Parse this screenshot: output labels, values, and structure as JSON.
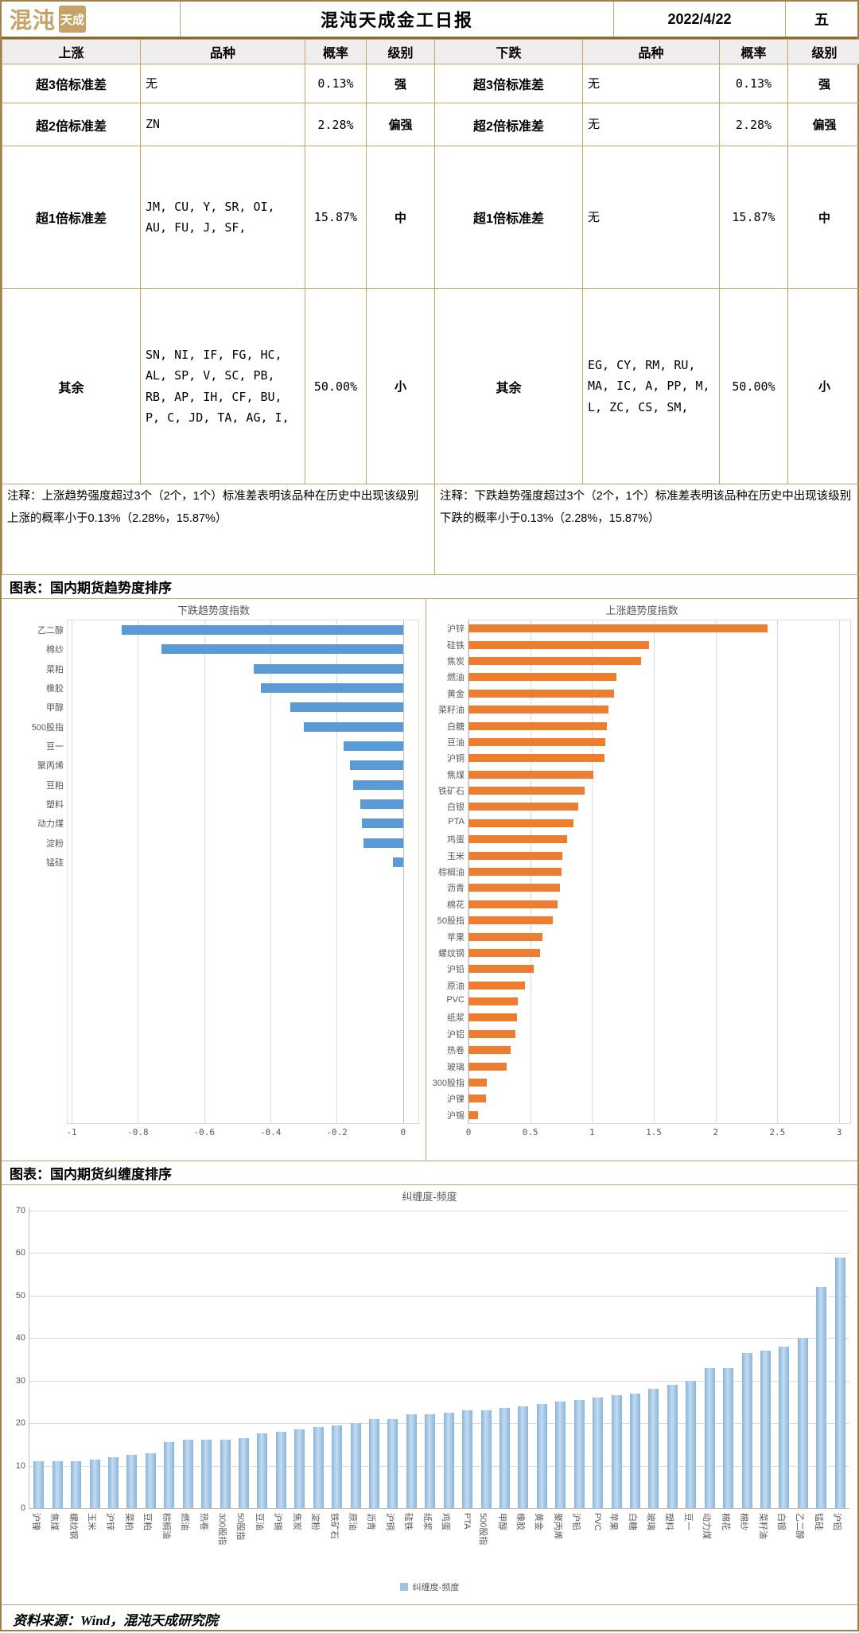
{
  "header": {
    "logo_outline": "混沌",
    "logo_box": "天成",
    "title": "混沌天成金工日报",
    "date": "2022/4/22",
    "weekday": "五"
  },
  "table": {
    "columns": [
      "上涨",
      "品种",
      "概率",
      "级别",
      "下跌",
      "品种",
      "概率",
      "级别"
    ],
    "rows": [
      [
        "超3倍标准差",
        "无",
        "0.13%",
        "强",
        "超3倍标准差",
        "无",
        "0.13%",
        "强"
      ],
      [
        "超2倍标准差",
        "ZN",
        "2.28%",
        "偏强",
        "超2倍标准差",
        "无",
        "2.28%",
        "偏强"
      ],
      [
        "超1倍标准差",
        "JM, CU, Y, SR, OI, AU, FU, J, SF,",
        "15.87%",
        "中",
        "超1倍标准差",
        "无",
        "15.87%",
        "中"
      ],
      [
        "其余",
        "SN, NI, IF, FG, HC, AL, SP, V, SC, PB, RB, AP, IH, CF, BU, P, C, JD, TA, AG, I,",
        "50.00%",
        "小",
        "其余",
        "EG, CY, RM, RU, MA, IC, A, PP, M, L, ZC, CS, SM,",
        "50.00%",
        "小"
      ]
    ],
    "note_up": "注释：上涨趋势强度超过3个（2个，1个）标准差表明该品种在历史中出现该级别上涨的概率小于0.13%（2.28%，15.87%）",
    "note_down": "注释：下跌趋势强度超过3个（2个，1个）标准差表明该品种在历史中出现该级别下跌的概率小于0.13%（2.28%，15.87%）"
  },
  "section1_title": "图表：国内期货趋势度排序",
  "section2_title": "图表：国内期货纠缠度排序",
  "footer": "资料来源：Wind，混沌天成研究院",
  "chart_data": [
    {
      "type": "bar",
      "orientation": "horizontal",
      "title": "下跌趋势度指数",
      "categories": [
        "乙二醇",
        "棉纱",
        "菜粕",
        "橡胶",
        "甲醇",
        "500股指",
        "豆一",
        "聚丙烯",
        "豆粕",
        "塑料",
        "动力煤",
        "淀粉",
        "锰硅"
      ],
      "values": [
        -0.85,
        -0.73,
        -0.45,
        -0.43,
        -0.34,
        -0.3,
        -0.18,
        -0.16,
        -0.15,
        -0.13,
        -0.125,
        -0.12,
        -0.03
      ],
      "xlabel": "",
      "ylabel": "",
      "xlim": [
        -1,
        0
      ],
      "ticks": [
        -1,
        -0.8,
        -0.6,
        -0.4,
        -0.2,
        0
      ],
      "tick_labels": [
        "-1",
        "-0.8",
        "-0.6",
        "-0.4",
        "-0.2",
        "0"
      ],
      "grid": true,
      "bar_color": "#5B9BD5",
      "total_slots": 26
    },
    {
      "type": "bar",
      "orientation": "horizontal",
      "title": "上涨趋势度指数",
      "categories": [
        "沪锌",
        "硅铁",
        "焦炭",
        "燃油",
        "黄金",
        "菜籽油",
        "白糖",
        "豆油",
        "沪铜",
        "焦煤",
        "铁矿石",
        "白银",
        "PTA",
        "鸡蛋",
        "玉米",
        "棕榈油",
        "沥青",
        "棉花",
        "50股指",
        "苹果",
        "螺纹钢",
        "沪铅",
        "原油",
        "PVC",
        "纸浆",
        "沪铝",
        "热卷",
        "玻璃",
        "300股指",
        "沪镍",
        "沪锡"
      ],
      "values": [
        2.42,
        1.46,
        1.4,
        1.2,
        1.18,
        1.13,
        1.12,
        1.11,
        1.1,
        1.01,
        0.94,
        0.89,
        0.85,
        0.8,
        0.76,
        0.75,
        0.74,
        0.72,
        0.68,
        0.6,
        0.58,
        0.53,
        0.46,
        0.4,
        0.39,
        0.38,
        0.34,
        0.31,
        0.15,
        0.14,
        0.08
      ],
      "xlabel": "",
      "ylabel": "",
      "xlim": [
        0,
        3
      ],
      "ticks": [
        0,
        0.5,
        1,
        1.5,
        2,
        2.5,
        3
      ],
      "tick_labels": [
        "0",
        "0.5",
        "1",
        "1.5",
        "2",
        "2.5",
        "3"
      ],
      "grid": true,
      "bar_color": "#ED7D31",
      "total_slots": 31
    },
    {
      "type": "bar",
      "orientation": "vertical",
      "title": "纠缠度-频度",
      "legend": "纠缠度-频度",
      "categories": [
        "沪镍",
        "焦煤",
        "螺纹钢",
        "玉米",
        "沪锌",
        "菜粕",
        "豆粕",
        "棕榈油",
        "燃油",
        "热卷",
        "300股指",
        "50股指",
        "豆油",
        "沪锡",
        "焦炭",
        "淀粉",
        "铁矿石",
        "原油",
        "沥青",
        "沪铜",
        "硅铁",
        "纸浆",
        "鸡蛋",
        "PTA",
        "500股指",
        "甲醇",
        "橡胶",
        "黄金",
        "聚丙烯",
        "沪铅",
        "PVC",
        "苹果",
        "白糖",
        "玻璃",
        "塑料",
        "豆一",
        "动力煤",
        "棉花",
        "棉纱",
        "菜籽油",
        "白银",
        "乙二醇",
        "锰硅",
        "沪铝"
      ],
      "values": [
        11,
        11,
        11,
        11.5,
        12,
        12.5,
        13,
        15.5,
        16,
        16,
        16,
        16.5,
        17.5,
        18,
        18.5,
        19,
        19.5,
        20,
        21,
        21,
        22,
        22,
        22.5,
        23,
        23,
        23.5,
        24,
        24.5,
        25,
        25.5,
        26,
        26.5,
        27,
        28,
        29,
        30,
        33,
        33,
        36.5,
        37,
        38,
        40,
        52,
        59
      ],
      "xlabel": "",
      "ylabel": "",
      "ylim": [
        0,
        70
      ],
      "yticks": [
        0,
        10,
        20,
        30,
        40,
        50,
        60,
        70
      ],
      "ytick_labels": [
        "0",
        "10",
        "20",
        "30",
        "40",
        "50",
        "60",
        "70"
      ],
      "grid": true,
      "bar_color": "#9DC3E6",
      "legend_position": "bottom"
    }
  ]
}
